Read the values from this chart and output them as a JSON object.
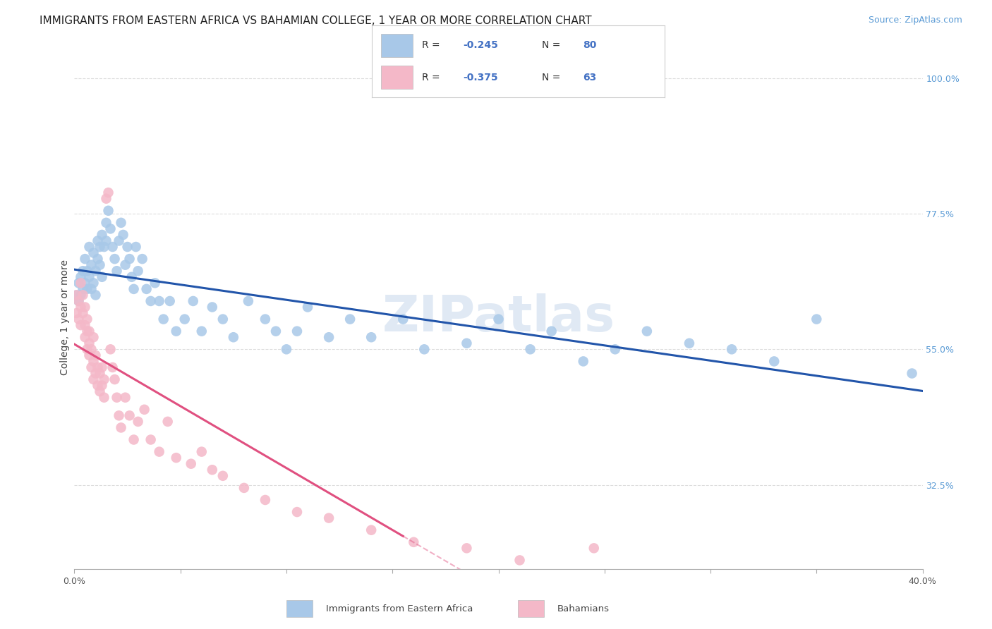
{
  "title": "IMMIGRANTS FROM EASTERN AFRICA VS BAHAMIAN COLLEGE, 1 YEAR OR MORE CORRELATION CHART",
  "source": "Source: ZipAtlas.com",
  "ylabel": "College, 1 year or more",
  "xlim": [
    0.0,
    0.4
  ],
  "ylim": [
    0.185,
    1.02
  ],
  "right_yticks": [
    0.325,
    0.55,
    0.775,
    1.0
  ],
  "right_yticklabels": [
    "32.5%",
    "55.0%",
    "77.5%",
    "100.0%"
  ],
  "legend_label1": "Immigrants from Eastern Africa",
  "legend_label2": "Bahamians",
  "blue_color": "#a8c8e8",
  "pink_color": "#f4b8c8",
  "blue_line_color": "#2255aa",
  "pink_line_color": "#e05080",
  "title_fontsize": 11,
  "source_fontsize": 9,
  "axis_label_fontsize": 10,
  "tick_fontsize": 9,
  "blue_scatter_x": [
    0.001,
    0.002,
    0.002,
    0.003,
    0.003,
    0.004,
    0.004,
    0.005,
    0.005,
    0.006,
    0.006,
    0.007,
    0.007,
    0.008,
    0.008,
    0.009,
    0.009,
    0.01,
    0.01,
    0.011,
    0.011,
    0.012,
    0.012,
    0.013,
    0.013,
    0.014,
    0.015,
    0.015,
    0.016,
    0.017,
    0.018,
    0.019,
    0.02,
    0.021,
    0.022,
    0.023,
    0.024,
    0.025,
    0.026,
    0.027,
    0.028,
    0.029,
    0.03,
    0.032,
    0.034,
    0.036,
    0.038,
    0.04,
    0.042,
    0.045,
    0.048,
    0.052,
    0.056,
    0.06,
    0.065,
    0.07,
    0.075,
    0.082,
    0.09,
    0.095,
    0.1,
    0.105,
    0.11,
    0.12,
    0.13,
    0.14,
    0.155,
    0.165,
    0.185,
    0.2,
    0.215,
    0.225,
    0.24,
    0.255,
    0.27,
    0.29,
    0.31,
    0.33,
    0.35,
    0.395
  ],
  "blue_scatter_y": [
    0.64,
    0.66,
    0.63,
    0.67,
    0.64,
    0.65,
    0.68,
    0.66,
    0.7,
    0.65,
    0.68,
    0.72,
    0.67,
    0.69,
    0.65,
    0.71,
    0.66,
    0.68,
    0.64,
    0.7,
    0.73,
    0.69,
    0.72,
    0.74,
    0.67,
    0.72,
    0.76,
    0.73,
    0.78,
    0.75,
    0.72,
    0.7,
    0.68,
    0.73,
    0.76,
    0.74,
    0.69,
    0.72,
    0.7,
    0.67,
    0.65,
    0.72,
    0.68,
    0.7,
    0.65,
    0.63,
    0.66,
    0.63,
    0.6,
    0.63,
    0.58,
    0.6,
    0.63,
    0.58,
    0.62,
    0.6,
    0.57,
    0.63,
    0.6,
    0.58,
    0.55,
    0.58,
    0.62,
    0.57,
    0.6,
    0.57,
    0.6,
    0.55,
    0.56,
    0.6,
    0.55,
    0.58,
    0.53,
    0.55,
    0.58,
    0.56,
    0.55,
    0.53,
    0.6,
    0.51
  ],
  "pink_scatter_x": [
    0.001,
    0.001,
    0.002,
    0.002,
    0.003,
    0.003,
    0.003,
    0.004,
    0.004,
    0.005,
    0.005,
    0.005,
    0.006,
    0.006,
    0.006,
    0.007,
    0.007,
    0.007,
    0.008,
    0.008,
    0.009,
    0.009,
    0.009,
    0.01,
    0.01,
    0.011,
    0.011,
    0.012,
    0.012,
    0.013,
    0.013,
    0.014,
    0.014,
    0.015,
    0.016,
    0.017,
    0.018,
    0.019,
    0.02,
    0.021,
    0.022,
    0.024,
    0.026,
    0.028,
    0.03,
    0.033,
    0.036,
    0.04,
    0.044,
    0.048,
    0.055,
    0.06,
    0.065,
    0.07,
    0.08,
    0.09,
    0.105,
    0.12,
    0.14,
    0.16,
    0.185,
    0.21,
    0.245
  ],
  "pink_scatter_y": [
    0.64,
    0.61,
    0.63,
    0.6,
    0.66,
    0.62,
    0.59,
    0.61,
    0.64,
    0.62,
    0.59,
    0.57,
    0.55,
    0.58,
    0.6,
    0.56,
    0.54,
    0.58,
    0.52,
    0.55,
    0.5,
    0.53,
    0.57,
    0.51,
    0.54,
    0.49,
    0.52,
    0.48,
    0.51,
    0.49,
    0.52,
    0.47,
    0.5,
    0.8,
    0.81,
    0.55,
    0.52,
    0.5,
    0.47,
    0.44,
    0.42,
    0.47,
    0.44,
    0.4,
    0.43,
    0.45,
    0.4,
    0.38,
    0.43,
    0.37,
    0.36,
    0.38,
    0.35,
    0.34,
    0.32,
    0.3,
    0.28,
    0.27,
    0.25,
    0.23,
    0.22,
    0.2,
    0.22
  ],
  "pink_line_solid_end": 0.155,
  "watermark": "ZIPatlas",
  "grid_color": "#dddddd",
  "background_color": "#ffffff"
}
